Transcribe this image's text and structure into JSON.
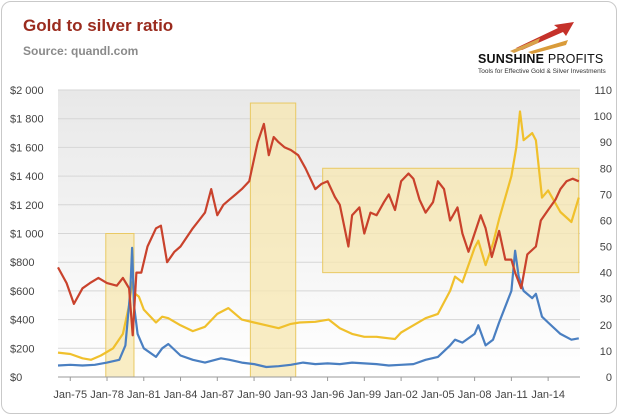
{
  "header": {
    "title": "Gold to silver ratio",
    "source": "Source: quandl.com"
  },
  "logo": {
    "name_bold": "SUNSHINE",
    "name_light": " PROFITS",
    "tagline": "Tools for Effective Gold & Silver Investments"
  },
  "colors": {
    "gold": "#f0c02c",
    "silver": "#4a7fc1",
    "ratio": "#c9422c",
    "highlight_fill": "#f7e7b0",
    "highlight_stroke": "#e9c964",
    "plot_bg_top": "#e8e8e8",
    "plot_bg_bottom": "#ffffff",
    "grid": "#d6d6d6"
  },
  "chart_data": {
    "type": "line",
    "title": "Gold to silver ratio",
    "left_axis": {
      "ylim": [
        0,
        2000
      ],
      "ticks": [
        0,
        200,
        400,
        600,
        800,
        1000,
        1200,
        1400,
        1600,
        1800,
        2000
      ],
      "tick_labels": [
        "$0",
        "$200",
        "$400",
        "$600",
        "$800",
        "$1 000",
        "$1 200",
        "$1 400",
        "$1 600",
        "$1 800",
        "$2 000"
      ]
    },
    "right_axis": {
      "ylim": [
        0,
        110
      ],
      "ticks": [
        0,
        10,
        20,
        30,
        40,
        50,
        60,
        70,
        80,
        90,
        100,
        110
      ],
      "tick_labels": [
        "0",
        "10",
        "20",
        "30",
        "40",
        "50",
        "60",
        "70",
        "80",
        "90",
        "100",
        "110"
      ]
    },
    "x_axis": {
      "range": [
        1974.0,
        2016.6
      ],
      "ticks": [
        1975,
        1978,
        1981,
        1984,
        1987,
        1990,
        1993,
        1996,
        1999,
        2002,
        2005,
        2008,
        2011,
        2014
      ],
      "tick_labels": [
        "Jan-75",
        "Jan-78",
        "Jan-81",
        "Jan-84",
        "Jan-87",
        "Jan-90",
        "Jan-93",
        "Jan-96",
        "Jan-99",
        "Jan-02",
        "Jan-05",
        "Jan-08",
        "Jan-11",
        "Jan-14"
      ]
    },
    "grid": true,
    "highlights": [
      {
        "x": [
          1977.9,
          1980.2
        ],
        "y_ratio": [
          0,
          55
        ]
      },
      {
        "x": [
          1989.7,
          1993.4
        ],
        "y_ratio": [
          0,
          105
        ]
      },
      {
        "x": [
          1995.6,
          2016.5
        ],
        "y_ratio": [
          40,
          80
        ]
      }
    ],
    "series": [
      {
        "name": "Gold",
        "axis": "left",
        "x": [
          1974.0,
          1975.0,
          1976.0,
          1976.7,
          1977.5,
          1978.5,
          1979.3,
          1979.8,
          1980.05,
          1980.3,
          1980.6,
          1981.0,
          1982.0,
          1982.5,
          1983.0,
          1984.0,
          1985.0,
          1986.0,
          1987.0,
          1987.9,
          1989.0,
          1990.0,
          1991.0,
          1992.0,
          1993.0,
          1993.7,
          1995.0,
          1996.1,
          1997.0,
          1998.0,
          1999.0,
          2000.0,
          2001.0,
          2001.5,
          2002.0,
          2003.0,
          2004.0,
          2005.0,
          2006.0,
          2006.4,
          2007.0,
          2008.0,
          2008.3,
          2008.9,
          2009.5,
          2010.0,
          2011.0,
          2011.4,
          2011.7,
          2012.0,
          2012.7,
          2013.0,
          2013.5,
          2014.0,
          2015.0,
          2015.9,
          2016.5
        ],
        "values": [
          170,
          160,
          130,
          120,
          150,
          200,
          300,
          500,
          660,
          580,
          560,
          470,
          380,
          420,
          410,
          360,
          320,
          350,
          440,
          480,
          400,
          380,
          360,
          340,
          370,
          380,
          385,
          400,
          340,
          300,
          280,
          280,
          270,
          265,
          310,
          360,
          410,
          440,
          600,
          700,
          660,
          900,
          950,
          780,
          930,
          1100,
          1400,
          1600,
          1850,
          1650,
          1700,
          1650,
          1250,
          1300,
          1150,
          1080,
          1250
        ]
      },
      {
        "name": "Silver",
        "axis": "left",
        "x": [
          1974.0,
          1975.0,
          1976.0,
          1977.0,
          1978.0,
          1979.0,
          1979.5,
          1979.9,
          1980.05,
          1980.2,
          1980.5,
          1981.0,
          1982.0,
          1982.5,
          1983.0,
          1984.0,
          1985.0,
          1986.0,
          1987.3,
          1988.0,
          1989.0,
          1990.0,
          1991.0,
          1992.0,
          1993.0,
          1994.0,
          1995.0,
          1996.0,
          1997.0,
          1998.0,
          1999.0,
          2000.0,
          2001.0,
          2002.0,
          2003.0,
          2004.0,
          2005.0,
          2006.0,
          2006.4,
          2007.0,
          2008.0,
          2008.3,
          2008.9,
          2009.5,
          2010.0,
          2011.0,
          2011.3,
          2011.6,
          2012.0,
          2012.7,
          2013.0,
          2013.5,
          2014.0,
          2015.0,
          2015.9,
          2016.5
        ],
        "values": [
          80,
          85,
          80,
          85,
          100,
          120,
          220,
          600,
          900,
          500,
          300,
          200,
          140,
          200,
          230,
          150,
          120,
          100,
          130,
          120,
          100,
          90,
          70,
          75,
          85,
          100,
          90,
          95,
          90,
          100,
          95,
          90,
          80,
          85,
          90,
          120,
          140,
          220,
          260,
          240,
          300,
          360,
          220,
          260,
          380,
          600,
          880,
          700,
          600,
          550,
          580,
          420,
          380,
          300,
          260,
          270
        ]
      },
      {
        "name": "Ratio",
        "axis": "right",
        "x": [
          1974.0,
          1974.7,
          1975.3,
          1976.0,
          1976.6,
          1977.3,
          1978.0,
          1978.8,
          1979.3,
          1979.8,
          1980.1,
          1980.4,
          1980.8,
          1981.3,
          1982.0,
          1982.4,
          1982.9,
          1983.5,
          1984.0,
          1985.0,
          1985.5,
          1986.0,
          1986.5,
          1987.0,
          1987.5,
          1988.0,
          1988.5,
          1989.0,
          1989.6,
          1990.3,
          1990.8,
          1991.2,
          1991.6,
          1992.0,
          1992.5,
          1993.0,
          1993.6,
          1994.2,
          1995.0,
          1995.5,
          1996.0,
          1996.6,
          1997.0,
          1997.7,
          1998.0,
          1998.6,
          1999.0,
          1999.5,
          2000.0,
          2000.6,
          2001.0,
          2001.5,
          2002.0,
          2002.6,
          2003.0,
          2003.5,
          2004.0,
          2004.6,
          2005.0,
          2005.5,
          2006.0,
          2006.6,
          2007.0,
          2007.5,
          2008.0,
          2008.5,
          2008.9,
          2009.4,
          2010.0,
          2010.5,
          2011.0,
          2011.3,
          2011.8,
          2012.3,
          2013.0,
          2013.4,
          2014.0,
          2014.6,
          2015.0,
          2015.5,
          2016.0,
          2016.5
        ],
        "values": [
          42,
          36,
          28,
          34,
          36,
          38,
          36,
          35,
          38,
          34,
          16,
          40,
          40,
          50,
          57,
          58,
          44,
          48,
          50,
          57,
          60,
          63,
          72,
          62,
          66,
          68,
          70,
          72,
          75,
          90,
          97,
          85,
          92,
          90,
          88,
          87,
          85,
          80,
          72,
          74,
          75,
          69,
          66,
          50,
          62,
          65,
          55,
          63,
          62,
          67,
          70,
          64,
          75,
          78,
          76,
          68,
          63,
          67,
          75,
          72,
          60,
          65,
          55,
          48,
          55,
          62,
          57,
          46,
          56,
          45,
          45,
          40,
          34,
          47,
          50,
          60,
          64,
          68,
          72,
          75,
          76,
          75
        ]
      }
    ]
  }
}
